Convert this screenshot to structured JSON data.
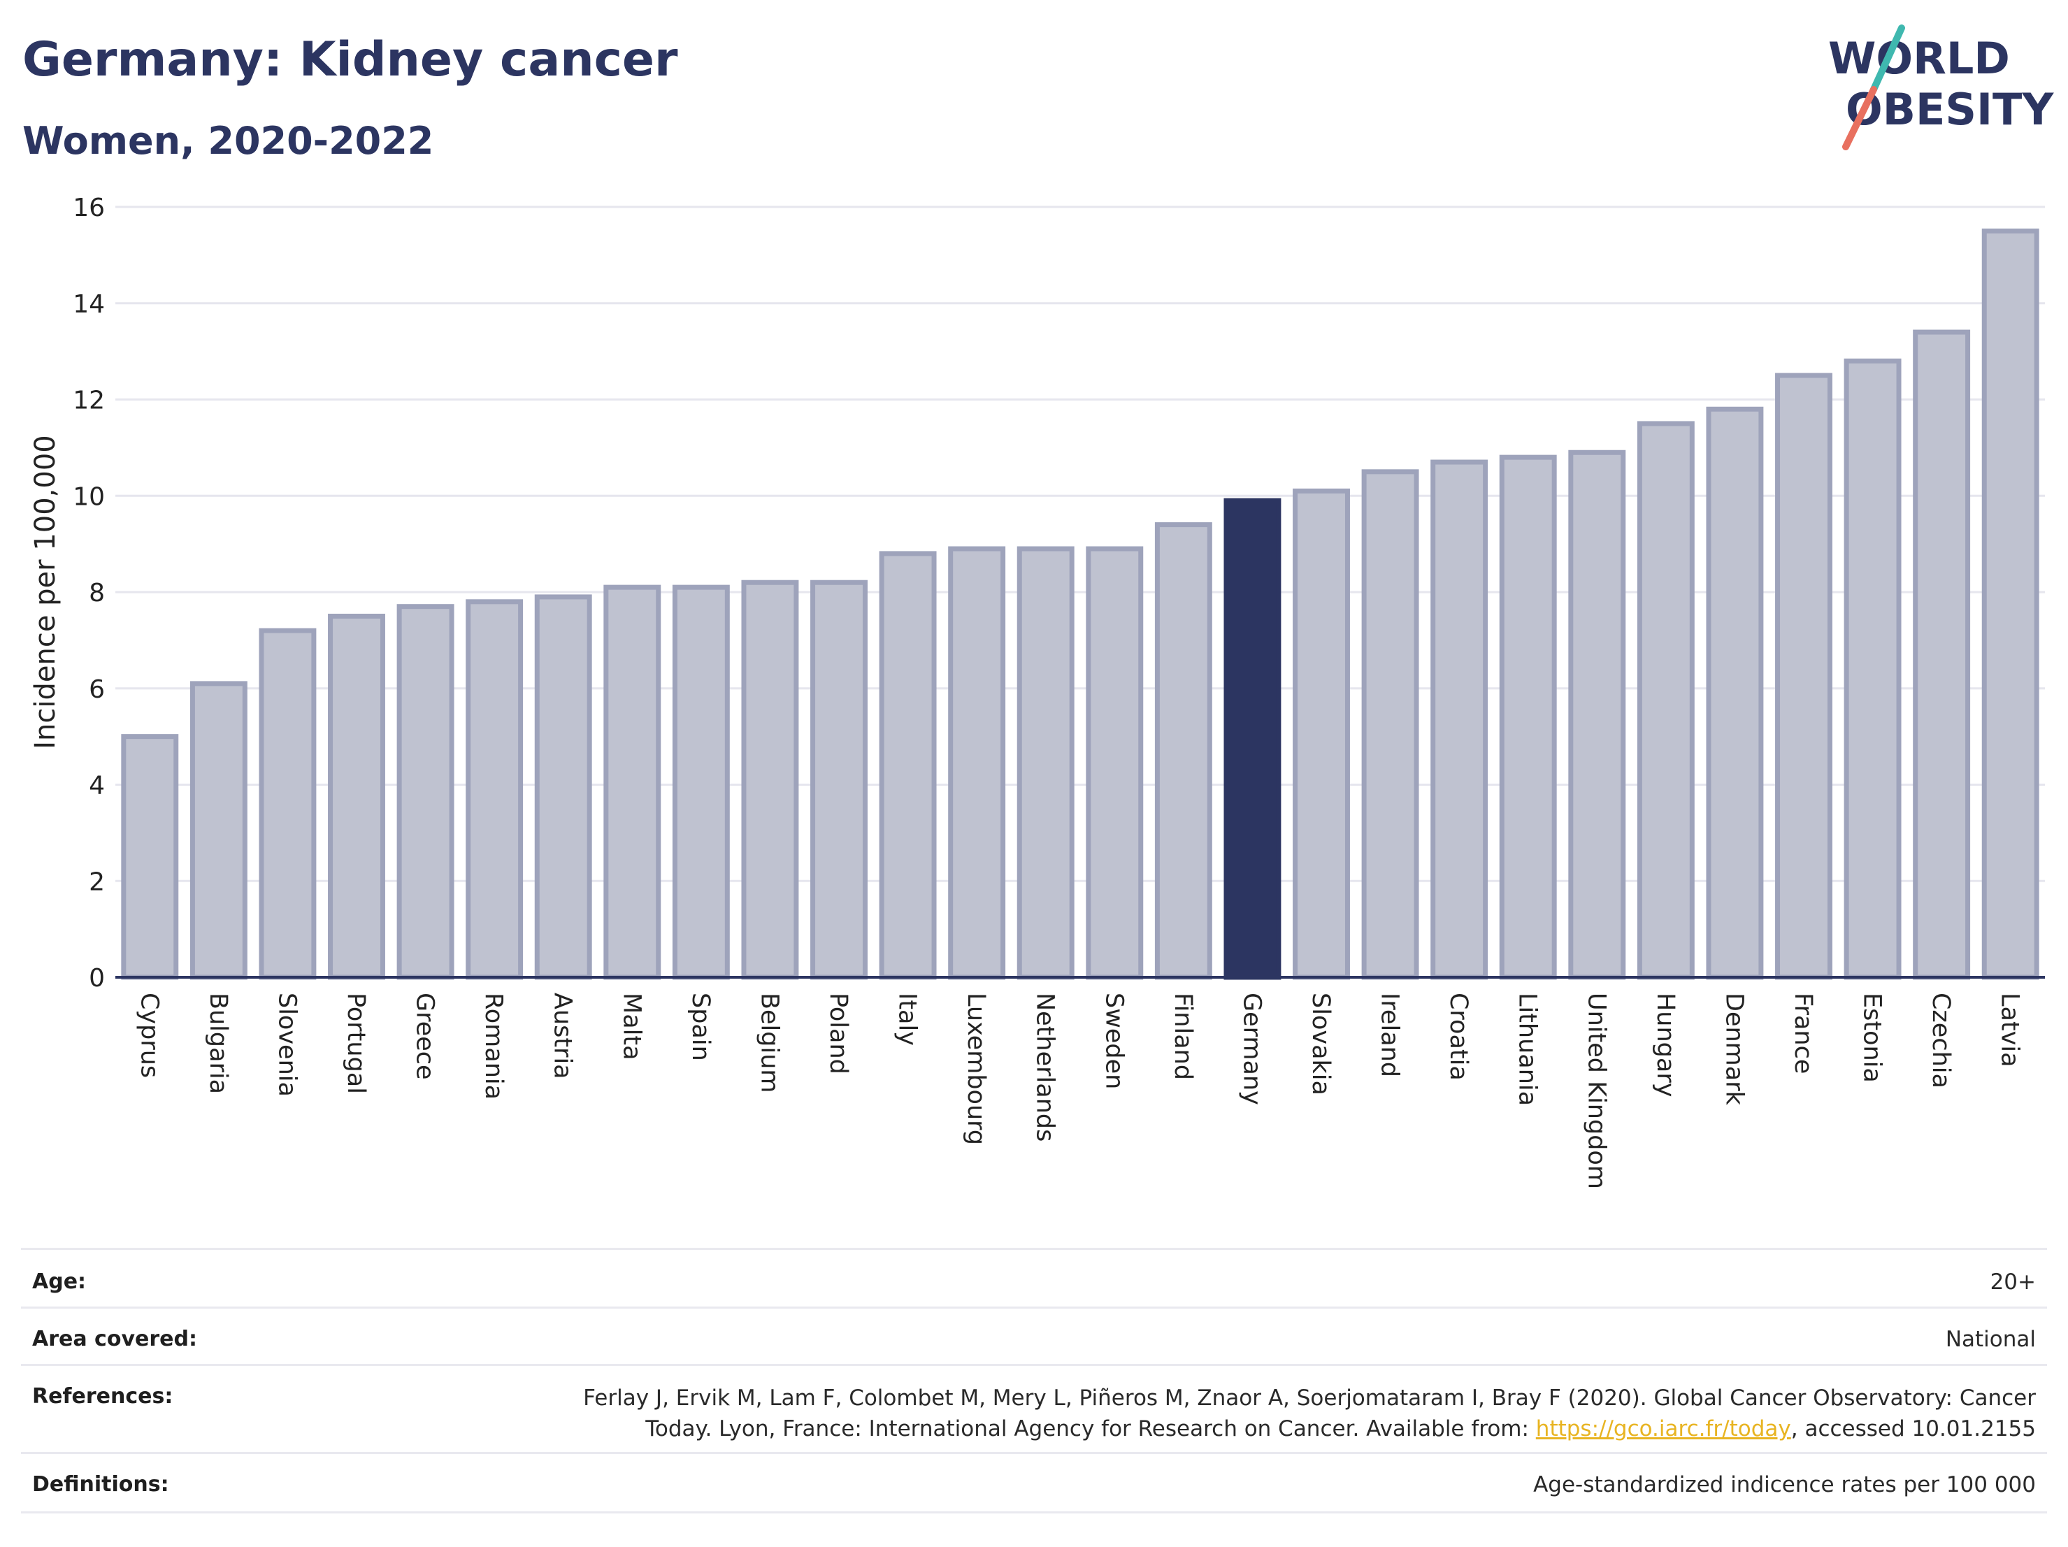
{
  "header": {
    "title": "Germany: Kidney cancer",
    "subtitle": "Women, 2020-2022"
  },
  "logo": {
    "line1": "WORLD",
    "line2": "OBESITY"
  },
  "chart_data": {
    "type": "bar",
    "ylabel": "Incidence per 100,000",
    "ylim": [
      0,
      16
    ],
    "yticks": [
      0,
      2,
      4,
      6,
      8,
      10,
      12,
      14,
      16
    ],
    "grid": true,
    "highlight": "Germany",
    "colors": {
      "bar": "#bfc2d0",
      "bar_border": "#9ea3bb",
      "highlight": "#2c3561"
    },
    "categories": [
      "Cyprus",
      "Bulgaria",
      "Slovenia",
      "Portugal",
      "Greece",
      "Romania",
      "Austria",
      "Malta",
      "Spain",
      "Belgium",
      "Poland",
      "Italy",
      "Luxembourg",
      "Netherlands",
      "Sweden",
      "Finland",
      "Germany",
      "Slovakia",
      "Ireland",
      "Croatia",
      "Lithuania",
      "United Kingdom",
      "Hungary",
      "Denmark",
      "France",
      "Estonia",
      "Czechia",
      "Latvia"
    ],
    "values": [
      5.0,
      6.1,
      7.2,
      7.5,
      7.7,
      7.8,
      7.9,
      8.1,
      8.1,
      8.2,
      8.2,
      8.8,
      8.9,
      8.9,
      8.9,
      9.4,
      9.9,
      10.1,
      10.5,
      10.7,
      10.8,
      10.9,
      11.5,
      11.8,
      12.5,
      12.8,
      13.4,
      15.5
    ]
  },
  "meta": {
    "age_label": "Age:",
    "age_value": "20+",
    "area_label": "Area covered:",
    "area_value": "National",
    "references_label": "References:",
    "references_line1": "Ferlay J, Ervik M, Lam F, Colombet M, Mery L, Piñeros M, Znaor A, Soerjomataram I, Bray F (2020). Global Cancer Observatory: Cancer",
    "references_line2_pre": "Today. Lyon, France: International Agency for Research on Cancer. Available from: ",
    "references_link": "https://gco.iarc.fr/today",
    "references_line2_post": ", accessed 10.01.2155",
    "definitions_label": "Definitions:",
    "definitions_value": "Age-standardized indicence rates per 100 000"
  }
}
